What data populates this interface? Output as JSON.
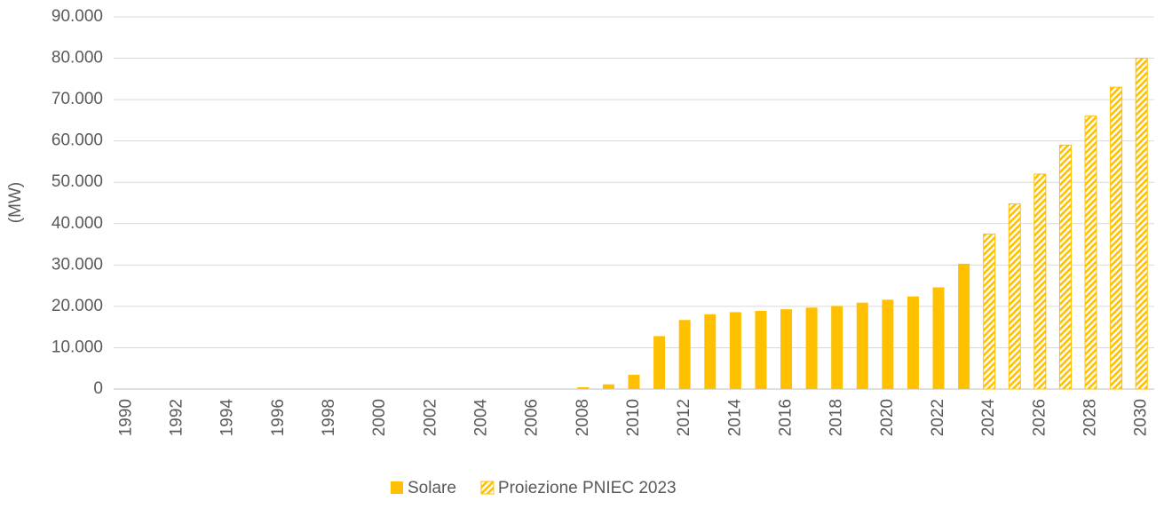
{
  "chart_data": {
    "type": "bar",
    "y_label": "(MW)",
    "categories": [
      "1990",
      null,
      "1992",
      null,
      "1994",
      null,
      "1996",
      null,
      "1998",
      null,
      "2000",
      null,
      "2002",
      null,
      "2004",
      null,
      "2006",
      null,
      "2008",
      null,
      "2010",
      null,
      "2012",
      null,
      "2014",
      null,
      "2016",
      null,
      "2018",
      null,
      "2020",
      null,
      "2022",
      null,
      "2024",
      null,
      "2026",
      null,
      "2028",
      null,
      "2030"
    ],
    "series": [
      {
        "name": "Solare",
        "color": "#FFC000",
        "pattern": "solid",
        "values": [
          0,
          0,
          0,
          0,
          0,
          0,
          0,
          0,
          0,
          0,
          0,
          0,
          0,
          0,
          0,
          0,
          0,
          100,
          430,
          1140,
          3470,
          12800,
          16700,
          18100,
          18600,
          18900,
          19300,
          19700,
          20100,
          20900,
          21600,
          22400,
          24600,
          30300,
          null,
          null,
          null,
          null,
          null,
          null,
          null
        ]
      },
      {
        "name": "Proiezione PNIEC 2023",
        "color": "#FFC000",
        "pattern": "hatch",
        "values": [
          null,
          null,
          null,
          null,
          null,
          null,
          null,
          null,
          null,
          null,
          null,
          null,
          null,
          null,
          null,
          null,
          null,
          null,
          null,
          null,
          null,
          null,
          null,
          null,
          null,
          null,
          null,
          null,
          null,
          null,
          null,
          null,
          null,
          null,
          37500,
          44800,
          52000,
          59000,
          66000,
          73000,
          80000
        ]
      }
    ],
    "ylim": [
      0,
      90000
    ],
    "yticks": [
      0,
      {
        "value": 10000,
        "label": "10.000"
      },
      {
        "value": 20000,
        "label": "20.000"
      },
      {
        "value": 30000,
        "label": "30.000"
      },
      {
        "value": 40000,
        "label": "40.000"
      },
      {
        "value": 50000,
        "label": "50.000"
      },
      {
        "value": 60000,
        "label": "60.000"
      },
      {
        "value": 70000,
        "label": "70.000"
      },
      {
        "value": 80000,
        "label": "80.000"
      },
      {
        "value": 90000,
        "label": "90.000"
      }
    ],
    "grid": true,
    "legend": "bottom"
  }
}
